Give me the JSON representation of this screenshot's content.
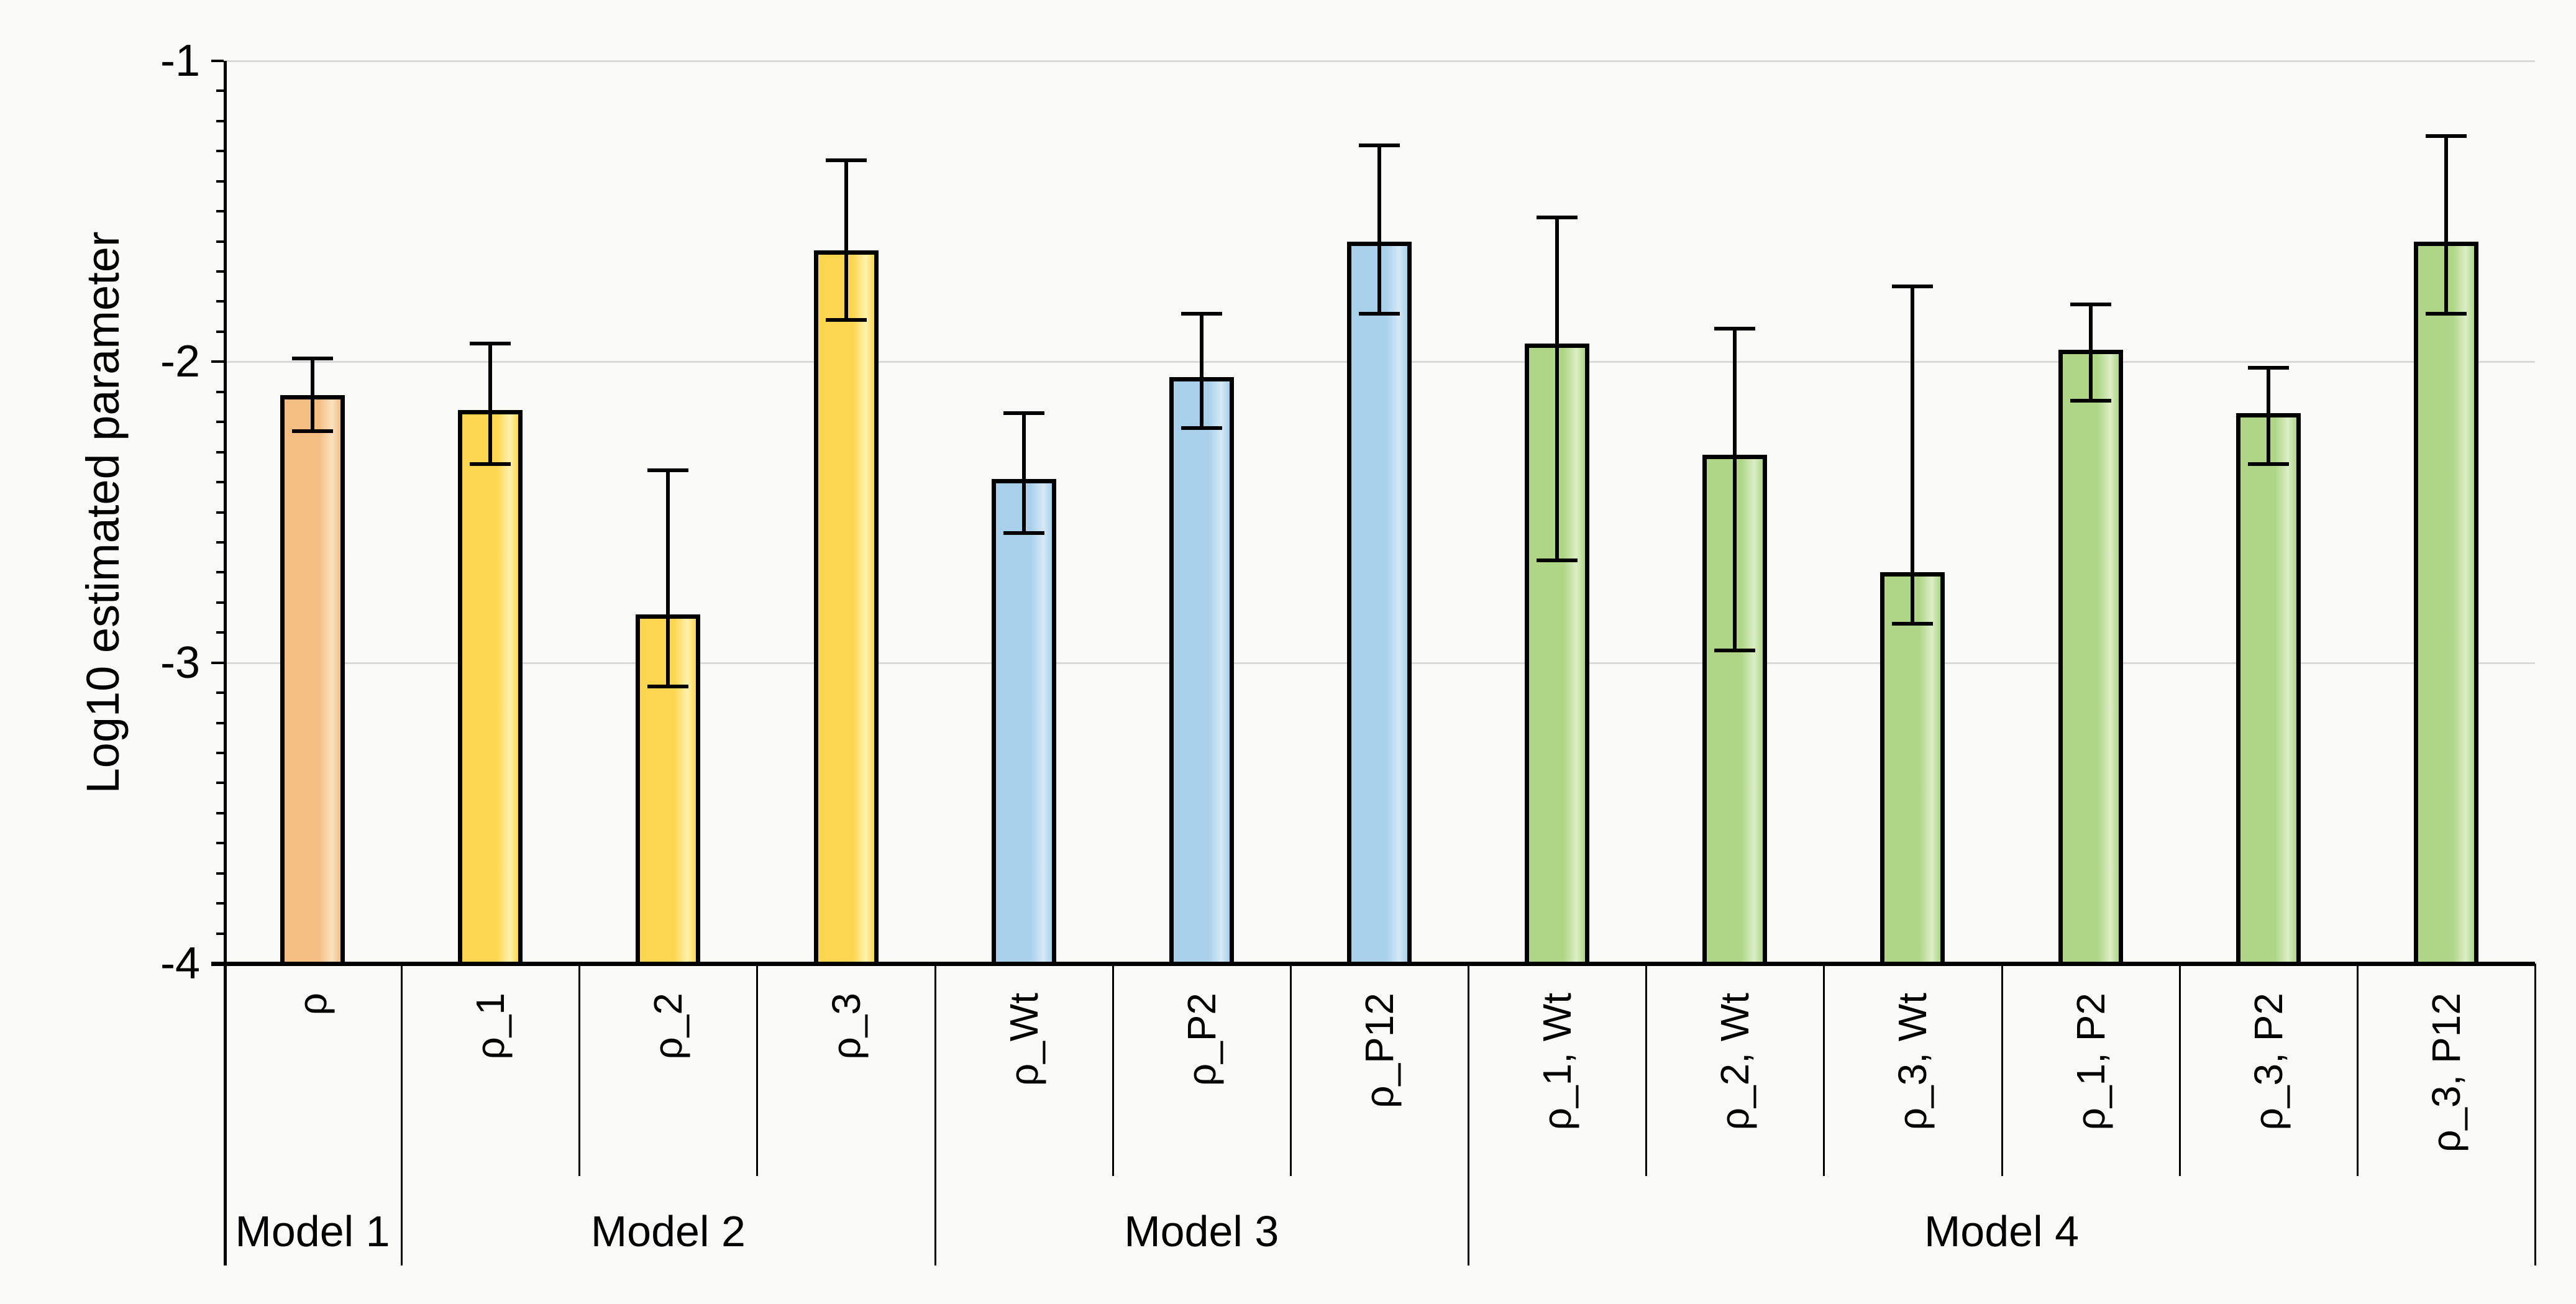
{
  "colors": {
    "background": "#FAFAF9",
    "gridline": "#D9D9D9",
    "axis": "#000000",
    "bar_border": "#000000",
    "error_bar": "#000000",
    "text": "#000000",
    "fills": {
      "orange": {
        "base": "#F4BE83",
        "light": "#FAE2C1"
      },
      "yellow": {
        "base": "#FCD650",
        "light": "#FEF2AE"
      },
      "blue": {
        "base": "#A8D0EB",
        "light": "#D6E9F7"
      },
      "green": {
        "base": "#AFD687",
        "light": "#DCEEC5"
      }
    }
  },
  "chart_data": {
    "type": "bar",
    "title": "",
    "ylabel": "Log10 estimated parameter",
    "xlabel": "",
    "ylim": [
      -4,
      -1
    ],
    "yticks": [
      -1,
      -2,
      -3,
      -4
    ],
    "ytick_labels": [
      "-1",
      "-2",
      "-3",
      "-4"
    ],
    "minor_tick_step": 0.1,
    "grid": "horizontal major gridlines only",
    "legend": "none",
    "groups": [
      {
        "label": "Model 1",
        "color_key": "orange",
        "count": 1
      },
      {
        "label": "Model 2",
        "color_key": "yellow",
        "count": 3
      },
      {
        "label": "Model 3",
        "color_key": "blue",
        "count": 3
      },
      {
        "label": "Model 4",
        "color_key": "green",
        "count": 6
      }
    ],
    "bars": [
      {
        "category": "ρ",
        "group": "Model 1",
        "color_key": "orange",
        "value": -2.11,
        "err_high": -1.99,
        "err_low": -2.23
      },
      {
        "category": "ρ_1",
        "group": "Model 2",
        "color_key": "yellow",
        "value": -2.16,
        "err_high": -1.94,
        "err_low": -2.34
      },
      {
        "category": "ρ_2",
        "group": "Model 2",
        "color_key": "yellow",
        "value": -2.84,
        "err_high": -2.36,
        "err_low": -3.08
      },
      {
        "category": "ρ_3",
        "group": "Model 2",
        "color_key": "yellow",
        "value": -1.63,
        "err_high": -1.33,
        "err_low": -1.86
      },
      {
        "category": "ρ_Wt",
        "group": "Model 3",
        "color_key": "blue",
        "value": -2.39,
        "err_high": -2.17,
        "err_low": -2.57
      },
      {
        "category": "ρ_P2",
        "group": "Model 3",
        "color_key": "blue",
        "value": -2.05,
        "err_high": -1.84,
        "err_low": -2.22
      },
      {
        "category": "ρ_P12",
        "group": "Model 3",
        "color_key": "blue",
        "value": -1.6,
        "err_high": -1.28,
        "err_low": -1.84
      },
      {
        "category": "ρ_1, Wt",
        "group": "Model 4",
        "color_key": "green",
        "value": -1.94,
        "err_high": -1.52,
        "err_low": -2.66
      },
      {
        "category": "ρ_2, Wt",
        "group": "Model 4",
        "color_key": "green",
        "value": -2.31,
        "err_high": -1.89,
        "err_low": -2.96
      },
      {
        "category": "ρ_3, Wt",
        "group": "Model 4",
        "color_key": "green",
        "value": -2.7,
        "err_high": -1.75,
        "err_low": -2.87
      },
      {
        "category": "ρ_1, P2",
        "group": "Model 4",
        "color_key": "green",
        "value": -1.96,
        "err_high": -1.81,
        "err_low": -2.13
      },
      {
        "category": "ρ_3, P2",
        "group": "Model 4",
        "color_key": "green",
        "value": -2.17,
        "err_high": -2.02,
        "err_low": -2.34
      },
      {
        "category": "ρ_3, P12",
        "group": "Model 4",
        "color_key": "green",
        "value": -1.6,
        "err_high": -1.25,
        "err_low": -1.84
      }
    ]
  }
}
